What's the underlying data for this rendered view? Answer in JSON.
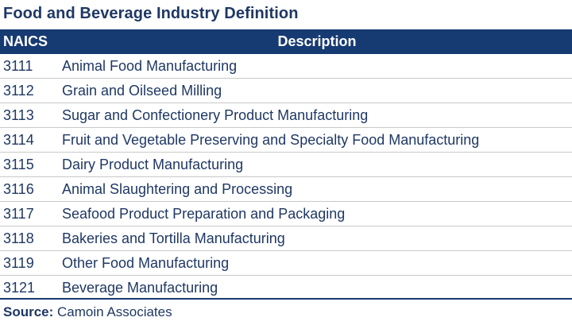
{
  "title": "Food and Beverage Industry Definition",
  "table": {
    "headers": {
      "naics": "NAICS",
      "description": "Description"
    },
    "rows": [
      {
        "code": "3111",
        "description": "Animal Food Manufacturing"
      },
      {
        "code": "3112",
        "description": "Grain and Oilseed Milling"
      },
      {
        "code": "3113",
        "description": "Sugar and Confectionery Product Manufacturing"
      },
      {
        "code": "3114",
        "description": "Fruit and Vegetable Preserving and Specialty Food Manufacturing"
      },
      {
        "code": "3115",
        "description": "Dairy Product Manufacturing"
      },
      {
        "code": "3116",
        "description": "Animal Slaughtering and Processing"
      },
      {
        "code": "3117",
        "description": "Seafood Product Preparation and Packaging"
      },
      {
        "code": "3118",
        "description": "Bakeries and Tortilla Manufacturing"
      },
      {
        "code": "3119",
        "description": "Other Food Manufacturing"
      },
      {
        "code": "3121",
        "description": "Beverage Manufacturing"
      }
    ]
  },
  "source": {
    "label": "Source:",
    "value": "Camoin Associates"
  },
  "colors": {
    "header_bg": "#163a72",
    "text": "#1f3864",
    "row_divider": "#c9c9c9"
  }
}
